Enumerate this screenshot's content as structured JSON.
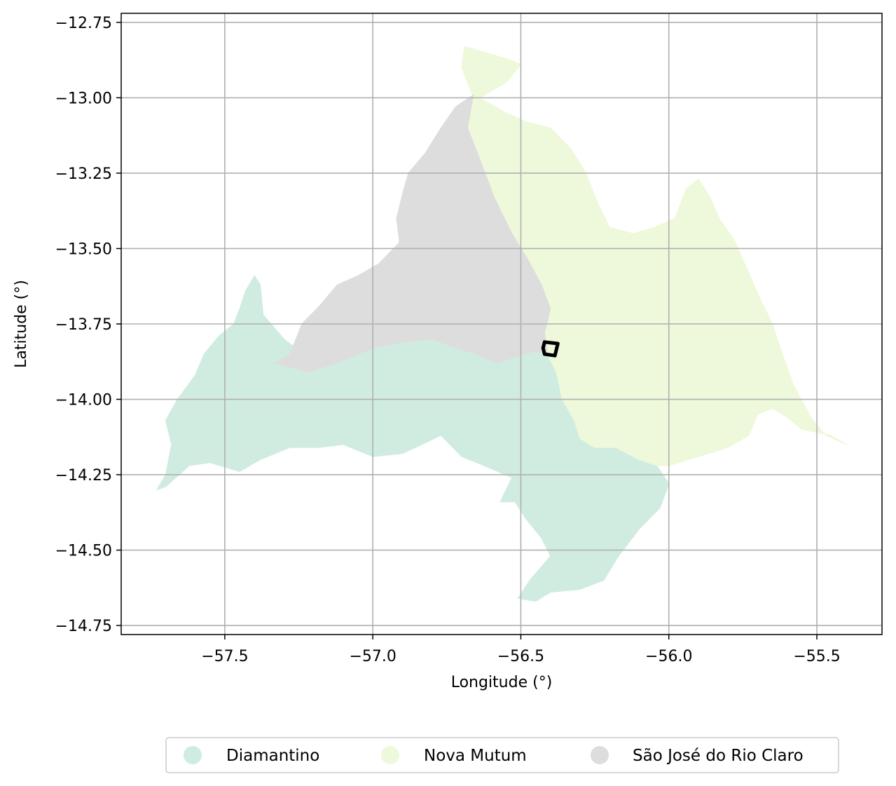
{
  "chart_data": {
    "type": "map",
    "xlabel": "Longitude (°)",
    "ylabel": "Latitude (°)",
    "xlim": [
      -57.85,
      -55.28
    ],
    "ylim": [
      -14.78,
      -12.72
    ],
    "x_ticks": [
      -57.5,
      -57.0,
      -56.5,
      -56.0,
      -55.5
    ],
    "y_ticks": [
      -12.75,
      -13.0,
      -13.25,
      -13.5,
      -13.75,
      -14.0,
      -14.25,
      -14.5,
      -14.75
    ],
    "x_tick_labels": [
      "−57.5",
      "−57.0",
      "−56.5",
      "−56.0",
      "−55.5"
    ],
    "y_tick_labels": [
      "−12.75",
      "−13.00",
      "−13.25",
      "−13.50",
      "−13.75",
      "−14.00",
      "−14.25",
      "−14.50",
      "−14.75"
    ],
    "grid": true,
    "legend_position": "bottom-center",
    "regions": [
      {
        "name": "Diamantino",
        "color": "#d0ece0",
        "polygon": [
          [
            -57.73,
            -14.3
          ],
          [
            -57.7,
            -14.25
          ],
          [
            -57.68,
            -14.15
          ],
          [
            -57.7,
            -14.07
          ],
          [
            -57.66,
            -14.0
          ],
          [
            -57.6,
            -13.92
          ],
          [
            -57.57,
            -13.85
          ],
          [
            -57.52,
            -13.79
          ],
          [
            -57.47,
            -13.75
          ],
          [
            -57.45,
            -13.7
          ],
          [
            -57.43,
            -13.64
          ],
          [
            -57.4,
            -13.59
          ],
          [
            -57.38,
            -13.62
          ],
          [
            -57.37,
            -13.72
          ],
          [
            -57.3,
            -13.8
          ],
          [
            -57.26,
            -13.83
          ],
          [
            -57.2,
            -13.77
          ],
          [
            -57.14,
            -13.73
          ],
          [
            -57.05,
            -13.74
          ],
          [
            -56.95,
            -13.72
          ],
          [
            -56.85,
            -13.71
          ],
          [
            -56.75,
            -13.66
          ],
          [
            -56.68,
            -13.71
          ],
          [
            -56.63,
            -13.75
          ],
          [
            -56.62,
            -13.84
          ],
          [
            -56.52,
            -13.86
          ],
          [
            -56.45,
            -13.84
          ],
          [
            -56.41,
            -13.85
          ],
          [
            -56.38,
            -13.91
          ],
          [
            -56.36,
            -14.0
          ],
          [
            -56.32,
            -14.07
          ],
          [
            -56.3,
            -14.13
          ],
          [
            -56.25,
            -14.16
          ],
          [
            -56.18,
            -14.16
          ],
          [
            -56.1,
            -14.2
          ],
          [
            -56.04,
            -14.22
          ],
          [
            -56.02,
            -14.25
          ],
          [
            -56.0,
            -14.28
          ],
          [
            -56.03,
            -14.36
          ],
          [
            -56.1,
            -14.43
          ],
          [
            -56.17,
            -14.52
          ],
          [
            -56.22,
            -14.6
          ],
          [
            -56.3,
            -14.63
          ],
          [
            -56.4,
            -14.64
          ],
          [
            -56.45,
            -14.67
          ],
          [
            -56.51,
            -14.66
          ],
          [
            -56.47,
            -14.6
          ],
          [
            -56.4,
            -14.52
          ],
          [
            -56.43,
            -14.46
          ],
          [
            -56.48,
            -14.4
          ],
          [
            -56.52,
            -14.34
          ],
          [
            -56.57,
            -14.34
          ],
          [
            -56.53,
            -14.26
          ],
          [
            -56.6,
            -14.23
          ],
          [
            -56.7,
            -14.19
          ],
          [
            -56.77,
            -14.12
          ],
          [
            -56.9,
            -14.18
          ],
          [
            -57.0,
            -14.19
          ],
          [
            -57.1,
            -14.15
          ],
          [
            -57.18,
            -14.16
          ],
          [
            -57.28,
            -14.16
          ],
          [
            -57.38,
            -14.2
          ],
          [
            -57.45,
            -14.24
          ],
          [
            -57.55,
            -14.21
          ],
          [
            -57.62,
            -14.22
          ],
          [
            -57.7,
            -14.29
          ]
        ]
      },
      {
        "name": "Nova Mutum",
        "color": "#eef8da",
        "polygon": [
          [
            -56.69,
            -12.83
          ],
          [
            -56.62,
            -12.85
          ],
          [
            -56.55,
            -12.87
          ],
          [
            -56.5,
            -12.89
          ],
          [
            -56.55,
            -12.95
          ],
          [
            -56.64,
            -13.0
          ],
          [
            -56.55,
            -13.05
          ],
          [
            -56.48,
            -13.08
          ],
          [
            -56.4,
            -13.1
          ],
          [
            -56.33,
            -13.17
          ],
          [
            -56.28,
            -13.25
          ],
          [
            -56.24,
            -13.35
          ],
          [
            -56.2,
            -13.43
          ],
          [
            -56.12,
            -13.45
          ],
          [
            -56.05,
            -13.43
          ],
          [
            -55.98,
            -13.4
          ],
          [
            -55.94,
            -13.3
          ],
          [
            -55.9,
            -13.27
          ],
          [
            -55.86,
            -13.33
          ],
          [
            -55.83,
            -13.4
          ],
          [
            -55.78,
            -13.47
          ],
          [
            -55.73,
            -13.58
          ],
          [
            -55.69,
            -13.67
          ],
          [
            -55.65,
            -13.75
          ],
          [
            -55.62,
            -13.84
          ],
          [
            -55.58,
            -13.95
          ],
          [
            -55.52,
            -14.06
          ],
          [
            -55.47,
            -14.12
          ],
          [
            -55.4,
            -14.15
          ],
          [
            -55.45,
            -14.12
          ],
          [
            -55.55,
            -14.1
          ],
          [
            -55.6,
            -14.06
          ],
          [
            -55.65,
            -14.03
          ],
          [
            -55.7,
            -14.05
          ],
          [
            -55.73,
            -14.12
          ],
          [
            -55.8,
            -14.16
          ],
          [
            -55.9,
            -14.19
          ],
          [
            -56.0,
            -14.22
          ],
          [
            -56.04,
            -14.22
          ],
          [
            -56.1,
            -14.2
          ],
          [
            -56.18,
            -14.16
          ],
          [
            -56.25,
            -14.16
          ],
          [
            -56.3,
            -14.13
          ],
          [
            -56.32,
            -14.07
          ],
          [
            -56.36,
            -14.0
          ],
          [
            -56.38,
            -13.91
          ],
          [
            -56.41,
            -13.85
          ],
          [
            -56.42,
            -13.78
          ],
          [
            -56.4,
            -13.7
          ],
          [
            -56.43,
            -13.62
          ],
          [
            -56.48,
            -13.53
          ],
          [
            -56.53,
            -13.45
          ],
          [
            -56.59,
            -13.33
          ],
          [
            -56.64,
            -13.2
          ],
          [
            -56.68,
            -13.1
          ],
          [
            -56.66,
            -13.0
          ],
          [
            -56.7,
            -12.9
          ]
        ]
      },
      {
        "name": "São José do Rio Claro",
        "color": "#dddddd",
        "polygon": [
          [
            -56.66,
            -12.99
          ],
          [
            -56.72,
            -13.03
          ],
          [
            -56.77,
            -13.1
          ],
          [
            -56.82,
            -13.18
          ],
          [
            -56.88,
            -13.25
          ],
          [
            -56.9,
            -13.32
          ],
          [
            -56.92,
            -13.4
          ],
          [
            -56.91,
            -13.48
          ],
          [
            -56.98,
            -13.55
          ],
          [
            -57.05,
            -13.59
          ],
          [
            -57.12,
            -13.62
          ],
          [
            -57.18,
            -13.69
          ],
          [
            -57.24,
            -13.75
          ],
          [
            -57.28,
            -13.85
          ],
          [
            -57.33,
            -13.88
          ],
          [
            -57.22,
            -13.91
          ],
          [
            -57.12,
            -13.88
          ],
          [
            -57.0,
            -13.83
          ],
          [
            -56.9,
            -13.81
          ],
          [
            -56.8,
            -13.8
          ],
          [
            -56.72,
            -13.83
          ],
          [
            -56.65,
            -13.85
          ],
          [
            -56.58,
            -13.88
          ],
          [
            -56.52,
            -13.86
          ],
          [
            -56.45,
            -13.84
          ],
          [
            -56.41,
            -13.85
          ],
          [
            -56.42,
            -13.78
          ],
          [
            -56.4,
            -13.7
          ],
          [
            -56.43,
            -13.62
          ],
          [
            -56.48,
            -13.53
          ],
          [
            -56.53,
            -13.45
          ],
          [
            -56.59,
            -13.33
          ],
          [
            -56.64,
            -13.2
          ],
          [
            -56.68,
            -13.1
          ]
        ]
      }
    ],
    "highlight_outline": {
      "color": "#000000",
      "polygon": [
        [
          -56.42,
          -13.81
        ],
        [
          -56.375,
          -13.815
        ],
        [
          -56.385,
          -13.855
        ],
        [
          -56.42,
          -13.85
        ],
        [
          -56.425,
          -13.83
        ]
      ]
    },
    "legend": [
      {
        "name": "Diamantino",
        "color": "#d0ece0"
      },
      {
        "name": "Nova Mutum",
        "color": "#eef8da"
      },
      {
        "name": "São José do Rio Claro",
        "color": "#dddddd"
      }
    ]
  }
}
